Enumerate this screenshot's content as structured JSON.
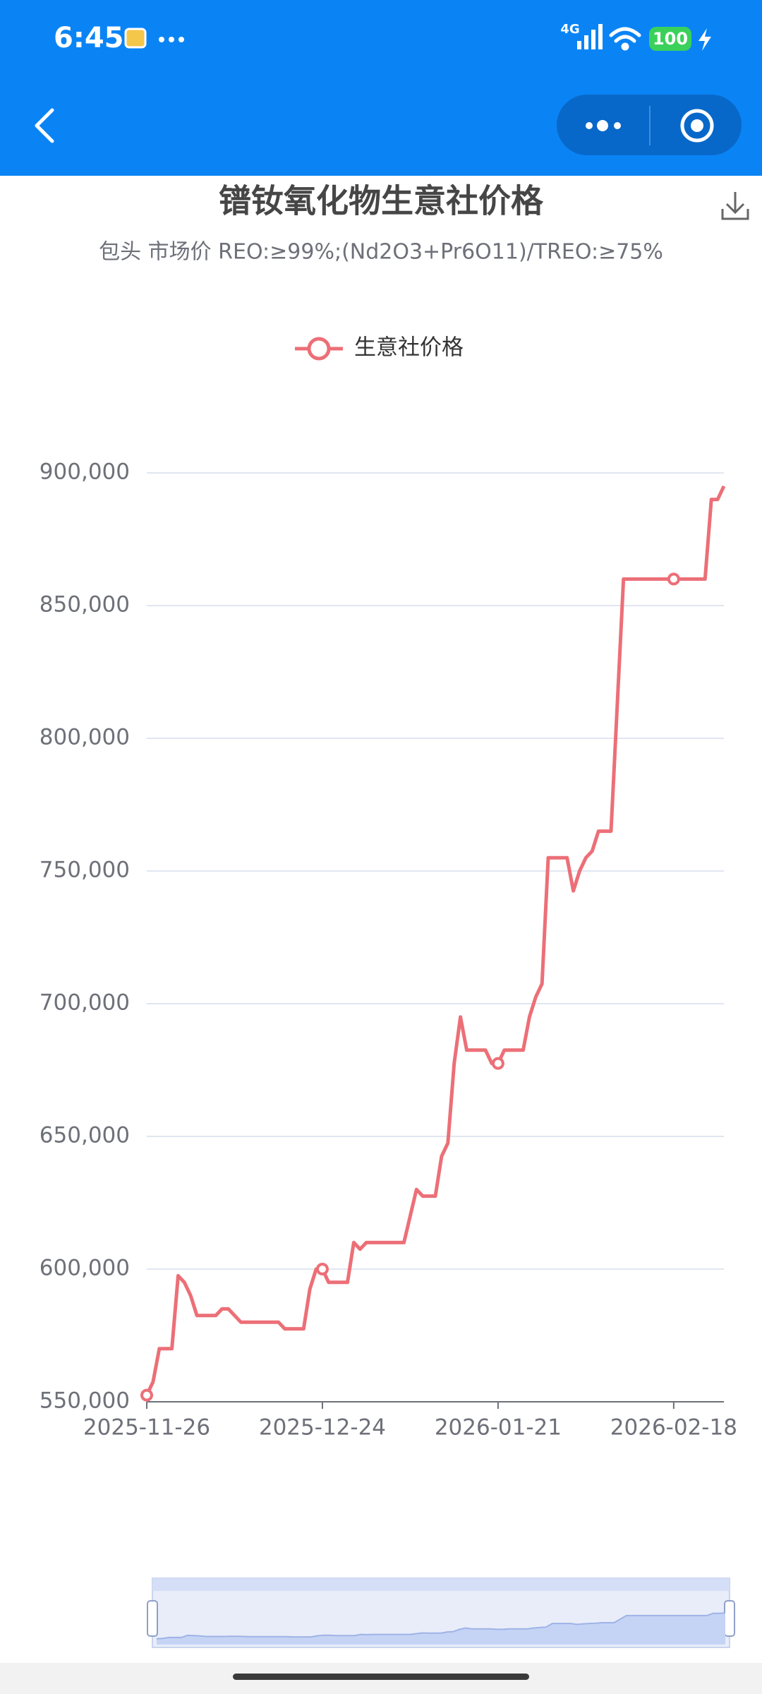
{
  "status_bar": {
    "time": "6:45",
    "network": "4G",
    "battery": "100"
  },
  "chart_data": {
    "type": "line",
    "title": "镨钕氧化物生意社价格",
    "subtitle": "包头 市场价 REO:≥99%;(Nd2O3+Pr6O11)/TREO:≥75%",
    "x": [
      "2025-11-26",
      "2025-11-27",
      "2025-11-28",
      "2025-11-30",
      "2025-12-01",
      "2025-12-02",
      "2025-12-03",
      "2025-12-04",
      "2025-12-07",
      "2025-12-08",
      "2025-12-09",
      "2025-12-11",
      "2025-12-17",
      "2025-12-18",
      "2025-12-21",
      "2025-12-22",
      "2025-12-23",
      "2025-12-24",
      "2025-12-25",
      "2025-12-28",
      "2025-12-29",
      "2025-12-30",
      "2025-12-31",
      "2026-01-06",
      "2026-01-08",
      "2026-01-09",
      "2026-01-11",
      "2026-01-12",
      "2026-01-13",
      "2026-01-14",
      "2026-01-15",
      "2026-01-16",
      "2026-01-19",
      "2026-01-20",
      "2026-01-21",
      "2026-01-22",
      "2026-01-25",
      "2026-01-26",
      "2026-01-27",
      "2026-01-28",
      "2026-01-29",
      "2026-01-31",
      "2026-02-01",
      "2026-02-02",
      "2026-02-03",
      "2026-02-04",
      "2026-02-05",
      "2026-02-06",
      "2026-02-08",
      "2026-02-10",
      "2026-02-18",
      "2026-02-23",
      "2026-02-24",
      "2026-02-25",
      "2026-02-26"
    ],
    "series": [
      {
        "name": "生意社价格",
        "color": "#ec6f77",
        "values": [
          552500,
          557500,
          570000,
          570000,
          597500,
          595000,
          590000,
          582500,
          582500,
          585000,
          585000,
          580000,
          580000,
          577500,
          577500,
          592500,
          600000,
          600000,
          595000,
          595000,
          610000,
          607500,
          610000,
          610000,
          630000,
          627500,
          627500,
          642500,
          647500,
          677500,
          695000,
          682500,
          682500,
          677500,
          677500,
          682500,
          682500,
          695000,
          702500,
          707500,
          755000,
          755000,
          755000,
          742500,
          750000,
          755000,
          757500,
          765000,
          765000,
          860000,
          860000,
          860000,
          890000,
          890000,
          895000
        ]
      }
    ],
    "xlim": [
      "2025-11-26",
      "2026-02-26"
    ],
    "xticks": [
      "2025-11-26",
      "2025-12-24",
      "2026-01-21",
      "2026-02-18"
    ],
    "ylim": [
      550000,
      900000
    ],
    "yticks": [
      {
        "value": 550000,
        "label": "550,000"
      },
      {
        "value": 600000,
        "label": "600,000"
      },
      {
        "value": 650000,
        "label": "650,000"
      },
      {
        "value": 700000,
        "label": "700,000"
      },
      {
        "value": 750000,
        "label": "750,000"
      },
      {
        "value": 800000,
        "label": "800,000"
      },
      {
        "value": 850000,
        "label": "850,000"
      },
      {
        "value": 900000,
        "label": "900,000"
      }
    ],
    "grid": true,
    "legend": "top"
  }
}
